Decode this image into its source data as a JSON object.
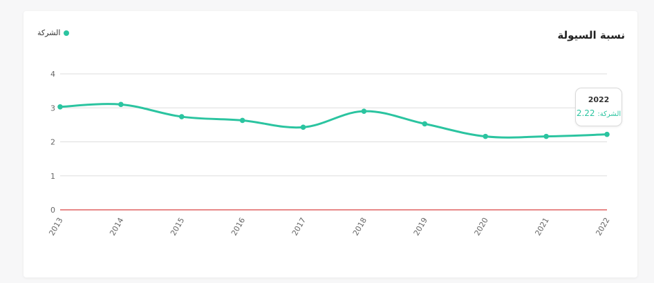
{
  "card": {
    "title": "نسبة السيولة"
  },
  "chart_data": {
    "type": "line",
    "title": "نسبة السيولة",
    "x": [
      "2013",
      "2014",
      "2015",
      "2016",
      "2017",
      "2018",
      "2019",
      "2020",
      "2021",
      "2022"
    ],
    "series": [
      {
        "name": "الشركة",
        "values": [
          3.03,
          3.1,
          2.74,
          2.63,
          2.43,
          2.9,
          2.53,
          2.16,
          2.16,
          2.22
        ],
        "color": "#2bc4a0"
      }
    ],
    "yticks": [
      "0",
      "1",
      "2",
      "3",
      "4"
    ],
    "ylim": [
      0,
      4
    ],
    "grid": true,
    "reference_line": {
      "value": 0,
      "color": "#e06060"
    },
    "legend_position": "top-left"
  },
  "tooltip": {
    "year": "2022",
    "series_label": "الشركة:",
    "value": "2.22"
  },
  "colors": {
    "accent": "#2bc4a0",
    "gridline": "#dddddd",
    "baseline": "#e06060"
  }
}
